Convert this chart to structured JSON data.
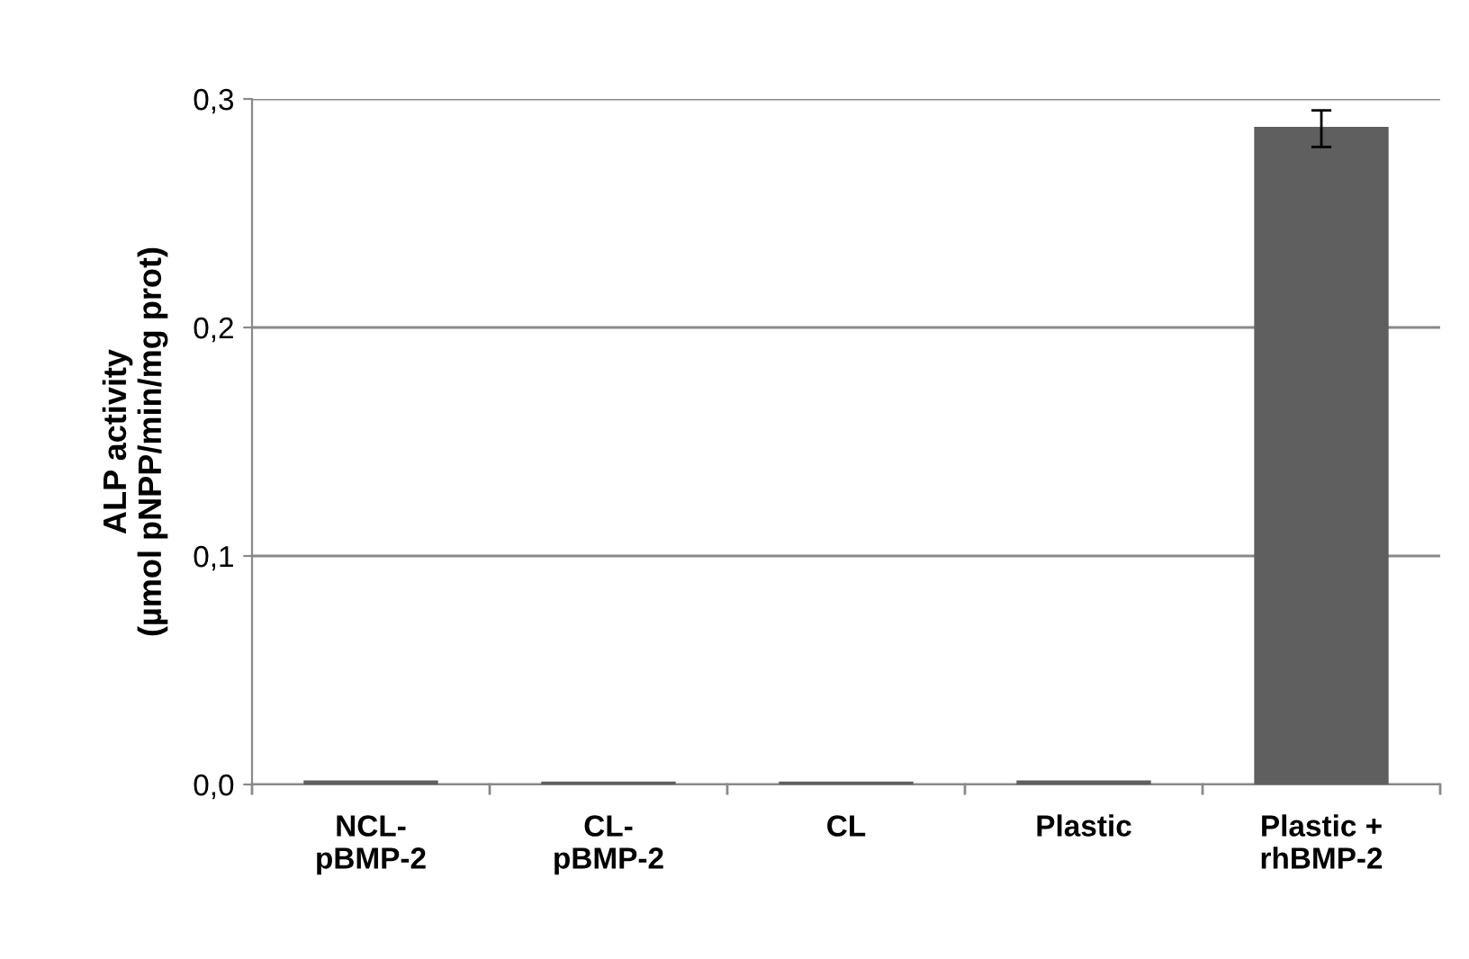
{
  "chart_data": {
    "type": "bar",
    "ylabel": "ALP activity\n(µmol pNPP/min/mg prot)",
    "categories": [
      "NCL-\npBMP-2",
      "CL-\npBMP-2",
      "CL",
      "Plastic",
      "Plastic +\nrhBMP-2"
    ],
    "values": [
      0.001,
      0.0005,
      0.0005,
      0.001,
      0.287
    ],
    "errors": [
      null,
      null,
      null,
      null,
      0.008
    ],
    "color": "#5f5f5f",
    "ylim": [
      0,
      0.3
    ],
    "yticks": [
      {
        "value": 0,
        "label": "0,0"
      },
      {
        "value": 0.1,
        "label": "0,1"
      },
      {
        "value": 0.2,
        "label": "0,2"
      },
      {
        "value": 0.3,
        "label": "0,3"
      }
    ],
    "grid": "y"
  }
}
